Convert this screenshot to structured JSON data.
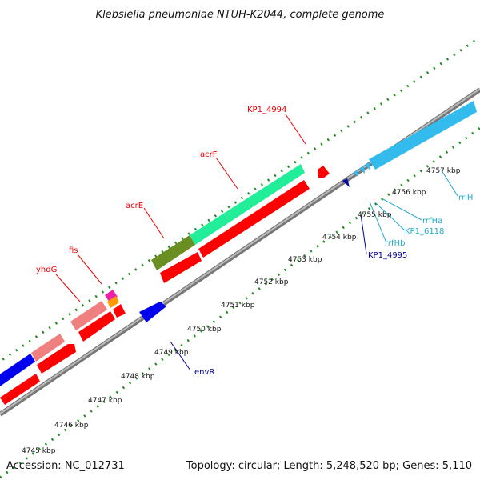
{
  "title": "Klebsiella pneumoniae NTUH-K2044, complete genome",
  "footer": {
    "accession": "Accession: NC_012731",
    "summary": "Topology: circular; Length: 5,248,520 bp; Genes: 5,110"
  },
  "ticks": [
    "4745 kbp",
    "4746 kbp",
    "4747 kbp",
    "4748 kbp",
    "4749 kbp",
    "4750 kbp",
    "4751 kbp",
    "4752 kbp",
    "4753 kbp",
    "4754 kbp",
    "4755 kbp",
    "4756 kbp",
    "4757 kbp"
  ],
  "labels": {
    "yhdG": "yhdG",
    "fis": "fis",
    "acrE": "acrE",
    "acrF": "acrF",
    "KP1_4994": "KP1_4994",
    "envR": "envR",
    "KP1_4995": "KP1_4995",
    "rrfHb": "rrfHb",
    "KP1_6118": "KP1_6118",
    "rrfHa": "rrfHa",
    "rrlH": "rrlH"
  },
  "colors": {
    "cds": "#ff0000",
    "gene_light": "#f08080",
    "gene_blue": "#0000ee",
    "gene_navy": "#0000aa",
    "gene_olive": "#6b8e23",
    "gene_teal": "#22ee99",
    "gene_magenta": "#ee22aa",
    "gene_orange": "#ff9900",
    "rrna": "#33bbee",
    "backbone": "#888888",
    "ring_dots": "#228b22",
    "label_red": "#ee0000",
    "label_blue": "#000099",
    "label_cyan": "#22aacc"
  }
}
